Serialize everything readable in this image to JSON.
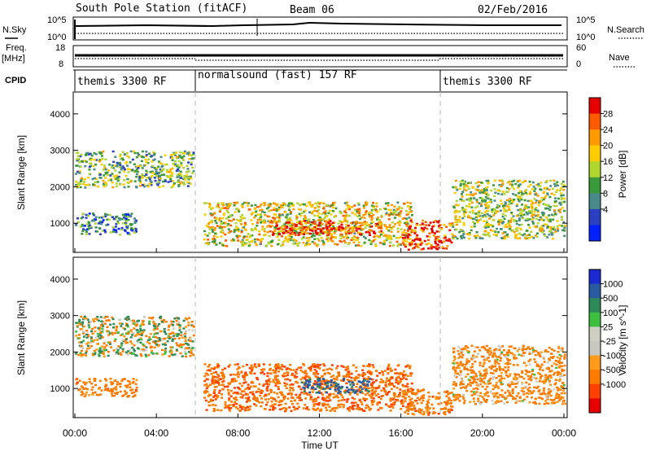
{
  "header": {
    "title": "South Pole Station (fitACF)",
    "beam": "Beam 06",
    "date": "02/Feb/2016"
  },
  "top_panels": {
    "nsky_label": "N.Sky",
    "nsky_ticks": [
      "10^5",
      "10^0"
    ],
    "nsearch_label": "N.Search",
    "nsearch_ticks": [
      "10^5",
      "10^0"
    ],
    "freq_label": "Freq.",
    "freq_unit": "[MHz]",
    "freq_ticks": [
      "18",
      "8"
    ],
    "nave_label": "Nave",
    "nave_ticks": [
      "60",
      "0"
    ],
    "cpid_label": "CPID",
    "cpid_segments": [
      {
        "label": "themis 3300 RF",
        "start_hr": 0,
        "end_hr": 6
      },
      {
        "label": "normalsound (fast) 157 RF",
        "start_hr": 6,
        "end_hr": 18
      },
      {
        "label": "themis 3300 RF",
        "start_hr": 18,
        "end_hr": 24
      }
    ]
  },
  "power_colorbar": {
    "label": "Power [dB]",
    "ticks": [
      "28",
      "24",
      "20",
      "16",
      "12",
      "8",
      "4"
    ],
    "colors": [
      "#e60000",
      "#ff5a00",
      "#ff9a00",
      "#ffcc00",
      "#b0d630",
      "#3a9a3a",
      "#4a8a8a",
      "#2a40c0",
      "#0020ff"
    ]
  },
  "velocity_colorbar": {
    "label": "Velocity [m s^-1]",
    "ticks": [
      "1000",
      "500",
      "100",
      "25",
      "-25",
      "-100",
      "-500",
      "-1000"
    ],
    "colors": [
      "#1a2ad0",
      "#2a5aa0",
      "#2f8a5a",
      "#3fbf3f",
      "#cfcfc4",
      "#c8c8c0",
      "#ff9a1a",
      "#ff7a00",
      "#ff4000",
      "#e60000"
    ]
  },
  "chart_data": [
    {
      "type": "heatmap",
      "title": "",
      "quantity": "Power [dB]",
      "xlabel": "",
      "ylabel": "Slant Range [km]",
      "xlim_hours": [
        0,
        24
      ],
      "ylim_km": [
        200,
        4600
      ],
      "yticks": [
        "1000",
        "2000",
        "3000",
        "4000"
      ],
      "xticks": [
        "00:00",
        "04:00",
        "08:00",
        "12:00",
        "16:00",
        "20:00",
        "00:00"
      ],
      "echo_regions": [
        {
          "t0": 0.0,
          "t1": 5.8,
          "r0": 2000,
          "r1": 3000,
          "level_db": 14
        },
        {
          "t0": 0.0,
          "t1": 3.0,
          "r0": 700,
          "r1": 1300,
          "level_db": 10
        },
        {
          "t0": 6.3,
          "t1": 16.5,
          "r0": 400,
          "r1": 1600,
          "level_db": 18
        },
        {
          "t0": 9.5,
          "t1": 15.0,
          "r0": 700,
          "r1": 1100,
          "level_db": 26
        },
        {
          "t0": 16.0,
          "t1": 18.5,
          "r0": 300,
          "r1": 1100,
          "level_db": 26
        },
        {
          "t0": 18.5,
          "t1": 24.0,
          "r0": 600,
          "r1": 2200,
          "level_db": 16
        }
      ]
    },
    {
      "type": "heatmap",
      "title": "",
      "quantity": "Velocity [m s^-1]",
      "xlabel": "Time UT",
      "ylabel": "Slant Range [km]",
      "xlim_hours": [
        0,
        24
      ],
      "ylim_km": [
        200,
        4600
      ],
      "yticks": [
        "1000",
        "2000",
        "3000",
        "4000"
      ],
      "xticks": [
        "00:00",
        "04:00",
        "08:00",
        "12:00",
        "16:00",
        "20:00",
        "00:00"
      ],
      "echo_regions": [
        {
          "t0": 0.0,
          "t1": 5.8,
          "r0": 1900,
          "r1": 3000,
          "velocity": 0
        },
        {
          "t0": 0.0,
          "t1": 3.0,
          "r0": 800,
          "r1": 1300,
          "velocity": -300
        },
        {
          "t0": 6.3,
          "t1": 16.5,
          "r0": 400,
          "r1": 1700,
          "velocity": -400
        },
        {
          "t0": 11.0,
          "t1": 14.5,
          "r0": 900,
          "r1": 1300,
          "velocity": 600
        },
        {
          "t0": 16.0,
          "t1": 18.5,
          "r0": 300,
          "r1": 1000,
          "velocity": -300
        },
        {
          "t0": 18.5,
          "t1": 24.0,
          "r0": 600,
          "r1": 2200,
          "velocity": -200
        }
      ]
    }
  ]
}
